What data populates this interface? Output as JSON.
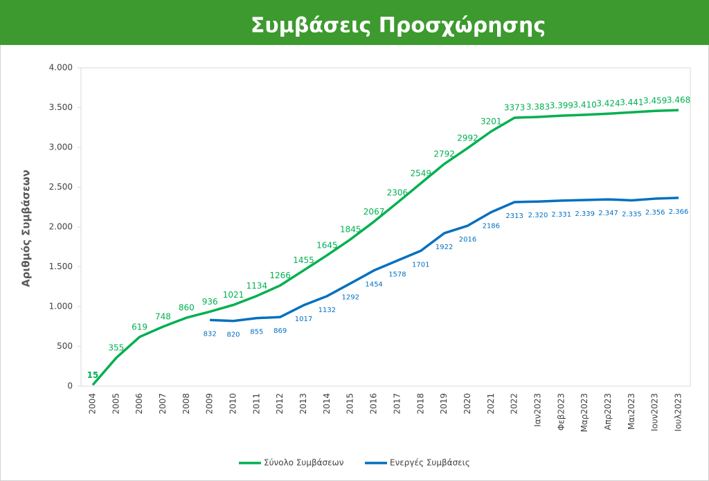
{
  "chart_data": {
    "type": "line",
    "title": "Συμβάσεις Προσχώρησης",
    "y_label": "Αριθμός Συμβάσεων",
    "categories": [
      "2004",
      "2005",
      "2006",
      "2007",
      "2008",
      "2009",
      "2010",
      "2011",
      "2012",
      "2013",
      "2014",
      "2015",
      "2016",
      "2017",
      "2018",
      "2019",
      "2020",
      "2021",
      "2022",
      "Ιαν2023",
      "Φεβ2023",
      "Μαρ2023",
      "Απρ2023",
      "Μαι2023",
      "Ιουν2023",
      "Ιουλ2023"
    ],
    "series": [
      {
        "name": "Σύνολο Συμβάσεων",
        "color": "#00b050",
        "values": [
          15,
          355,
          619,
          748,
          860,
          936,
          1021,
          1134,
          1266,
          1455,
          1645,
          1845,
          2067,
          2306,
          2549,
          2792,
          2992,
          3201,
          3373,
          3383,
          3399,
          3410,
          3424,
          3441,
          3459,
          3468
        ],
        "value_labels": [
          "15",
          "355",
          "619",
          "748",
          "860",
          "936",
          "1021",
          "1134",
          "1266",
          "1455",
          "1645",
          "1845",
          "2067",
          "2306",
          "2549",
          "2792",
          "2992",
          "3201",
          "3373",
          "3.383",
          "3.399",
          "3.410",
          "3.424",
          "3.441",
          "3.459",
          "3.468"
        ]
      },
      {
        "name": "Ενεργές Συμβάσεις",
        "color": "#0070c0",
        "values": [
          null,
          null,
          null,
          null,
          null,
          832,
          820,
          855,
          869,
          1017,
          1132,
          1292,
          1454,
          1578,
          1701,
          1922,
          2016,
          2186,
          2313,
          2320,
          2331,
          2339,
          2347,
          2335,
          2356,
          2366
        ],
        "value_labels": [
          null,
          null,
          null,
          null,
          null,
          "832",
          "820",
          "855",
          "869",
          "1017",
          "1132",
          "1292",
          "1454",
          "1578",
          "1701",
          "1922",
          "2016",
          "2186",
          "2313",
          "2.320",
          "2.331",
          "2.339",
          "2.347",
          "2.335",
          "2.356",
          "2.366"
        ]
      }
    ],
    "ylim": [
      0,
      4000
    ],
    "yticks": [
      0,
      500,
      {
        "value": 1000,
        "label": "1.000"
      },
      {
        "value": 1500,
        "label": "1.500"
      },
      {
        "value": 2000,
        "label": "2.000"
      },
      {
        "value": 2500,
        "label": "2.500"
      },
      {
        "value": 3000,
        "label": "3.000"
      },
      {
        "value": 3500,
        "label": "3.500"
      },
      {
        "value": 4000,
        "label": "4.000"
      }
    ],
    "legend": "bottom"
  }
}
